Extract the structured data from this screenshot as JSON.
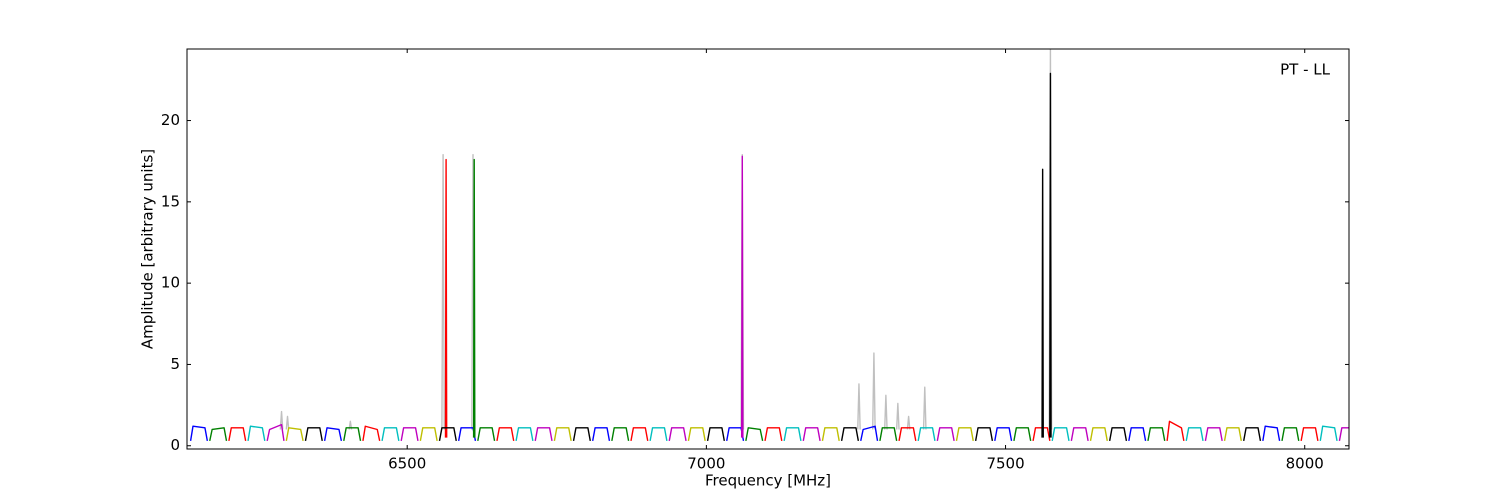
{
  "chart_data": {
    "type": "line",
    "xlabel": "Frequency [MHz]",
    "ylabel": "Amplitude [arbitrary units]",
    "annotation": "PT - LL",
    "xlim": [
      6132,
      8074
    ],
    "ylim": [
      -0.2,
      24.4
    ],
    "xticks": [
      6500,
      7000,
      7500,
      8000
    ],
    "yticks": [
      0,
      5,
      10,
      15,
      20
    ],
    "grid": false,
    "series": [
      {
        "color": "#c0c0c0",
        "x": [
          6288,
          6290,
          6292,
          null,
          6298,
          6300,
          6302,
          null,
          6403,
          6405,
          6407,
          null,
          6558,
          6560,
          6562,
          null,
          6608,
          6610,
          6612,
          null,
          7058,
          7060,
          7062,
          null,
          7253,
          7255,
          7257,
          null,
          7278,
          7280,
          7282,
          null,
          7298,
          7300,
          7302,
          null,
          7318,
          7320,
          7322,
          null,
          7336,
          7338,
          7340,
          null,
          7363,
          7365,
          7367,
          null,
          7573,
          7575,
          7577
        ],
        "values": [
          1.0,
          2.1,
          1.0,
          null,
          1.0,
          1.8,
          1.0,
          null,
          1.0,
          1.5,
          1.0,
          null,
          1.0,
          17.9,
          1.0,
          null,
          1.0,
          17.9,
          1.0,
          null,
          1.0,
          17.9,
          1.0,
          null,
          1.0,
          3.8,
          1.0,
          null,
          1.0,
          5.7,
          1.0,
          null,
          1.0,
          3.1,
          1.0,
          null,
          1.0,
          2.6,
          1.0,
          null,
          1.0,
          1.8,
          1.0,
          null,
          1.0,
          3.6,
          1.0,
          null,
          1.0,
          24.4,
          1.0
        ]
      },
      {
        "color": "#0000ff",
        "x": [
          6138,
          6142,
          6162,
          6166,
          null,
          6362,
          6366,
          6386,
          6390,
          null,
          6586,
          6590,
          6610,
          6614,
          null,
          6810,
          6814,
          6834,
          6838,
          null,
          7034,
          7038,
          7058,
          7062,
          null,
          7258,
          7262,
          7282,
          7286,
          null,
          7482,
          7486,
          7506,
          7510,
          null,
          7706,
          7710,
          7730,
          7734,
          null,
          7930,
          7934,
          7954,
          7958
        ],
        "values": [
          0.3,
          1.2,
          1.1,
          0.3,
          null,
          0.3,
          1.1,
          1.0,
          0.3,
          null,
          0.3,
          1.1,
          1.1,
          0.3,
          null,
          0.3,
          1.1,
          1.1,
          0.3,
          null,
          0.3,
          1.1,
          1.1,
          0.3,
          null,
          0.3,
          1.0,
          1.2,
          0.3,
          null,
          0.3,
          1.1,
          1.1,
          0.3,
          null,
          0.3,
          1.1,
          1.1,
          0.3,
          null,
          0.3,
          1.2,
          1.1,
          0.3
        ]
      },
      {
        "color": "#008000",
        "x": [
          6170,
          6174,
          6194,
          6198,
          null,
          6394,
          6398,
          6418,
          6422,
          null,
          6611,
          6612,
          6613,
          null,
          6618,
          6622,
          6642,
          6646,
          null,
          6842,
          6846,
          6866,
          6870,
          null,
          7066,
          7070,
          7090,
          7094,
          null,
          7290,
          7294,
          7314,
          7318,
          null,
          7514,
          7518,
          7538,
          7542,
          null,
          7738,
          7742,
          7762,
          7766,
          null,
          7962,
          7966,
          7986,
          7990
        ],
        "values": [
          0.3,
          1.0,
          1.1,
          0.3,
          null,
          0.3,
          1.1,
          1.1,
          0.3,
          null,
          0.5,
          17.6,
          0.5,
          null,
          0.3,
          1.1,
          1.1,
          0.3,
          null,
          0.3,
          1.1,
          1.1,
          0.3,
          null,
          0.3,
          1.1,
          1.0,
          0.3,
          null,
          0.3,
          1.1,
          1.1,
          0.3,
          null,
          0.3,
          1.1,
          1.1,
          0.3,
          null,
          0.3,
          1.1,
          1.1,
          0.3,
          null,
          0.3,
          1.1,
          1.1,
          0.3
        ]
      },
      {
        "color": "#ff0000",
        "x": [
          6202,
          6206,
          6226,
          6230,
          null,
          6426,
          6430,
          6450,
          6454,
          null,
          6564,
          6565,
          6566,
          null,
          6650,
          6654,
          6674,
          6678,
          null,
          6874,
          6878,
          6898,
          6902,
          null,
          7098,
          7102,
          7122,
          7126,
          null,
          7322,
          7326,
          7346,
          7350,
          null,
          7546,
          7550,
          7570,
          7574,
          null,
          7770,
          7774,
          7794,
          7798,
          null,
          7994,
          7998,
          8018,
          8022
        ],
        "values": [
          0.3,
          1.1,
          1.1,
          0.3,
          null,
          0.3,
          1.2,
          1.0,
          0.3,
          null,
          0.5,
          17.6,
          0.5,
          null,
          0.3,
          1.1,
          1.1,
          0.3,
          null,
          0.3,
          1.1,
          1.1,
          0.3,
          null,
          0.3,
          1.1,
          1.1,
          0.3,
          null,
          0.3,
          1.1,
          1.1,
          0.3,
          null,
          0.3,
          1.1,
          1.1,
          0.3,
          null,
          0.3,
          1.5,
          1.1,
          0.3,
          null,
          0.3,
          1.1,
          1.1,
          0.3
        ]
      },
      {
        "color": "#00bfbf",
        "x": [
          6234,
          6238,
          6258,
          6262,
          null,
          6458,
          6462,
          6482,
          6486,
          null,
          6682,
          6686,
          6706,
          6710,
          null,
          6906,
          6910,
          6930,
          6934,
          null,
          7130,
          7134,
          7154,
          7158,
          null,
          7354,
          7358,
          7378,
          7382,
          null,
          7578,
          7582,
          7602,
          7606,
          null,
          7802,
          7806,
          7826,
          7830,
          null,
          8026,
          8030,
          8050,
          8054
        ],
        "values": [
          0.3,
          1.2,
          1.1,
          0.3,
          null,
          0.3,
          1.1,
          1.1,
          0.3,
          null,
          0.3,
          1.1,
          1.1,
          0.3,
          null,
          0.3,
          1.1,
          1.1,
          0.3,
          null,
          0.3,
          1.1,
          1.1,
          0.3,
          null,
          0.3,
          1.1,
          1.1,
          0.3,
          null,
          0.3,
          1.1,
          1.1,
          0.3,
          null,
          0.3,
          1.1,
          1.1,
          0.3,
          null,
          0.3,
          1.2,
          1.1,
          0.3
        ]
      },
      {
        "color": "#bf00bf",
        "x": [
          6266,
          6270,
          6290,
          6294,
          null,
          6490,
          6494,
          6514,
          6518,
          null,
          6714,
          6718,
          6738,
          6742,
          null,
          6938,
          6942,
          6962,
          6966,
          null,
          7059,
          7060,
          7061,
          null,
          7162,
          7166,
          7186,
          7190,
          null,
          7386,
          7390,
          7410,
          7414,
          null,
          7610,
          7614,
          7634,
          7638,
          null,
          7834,
          7838,
          7858,
          7862,
          null,
          8058,
          8062,
          8082,
          8086
        ],
        "values": [
          0.3,
          1.0,
          1.3,
          0.3,
          null,
          0.3,
          1.1,
          1.1,
          0.3,
          null,
          0.3,
          1.1,
          1.1,
          0.3,
          null,
          0.3,
          1.1,
          1.1,
          0.3,
          null,
          0.5,
          17.8,
          0.5,
          null,
          0.3,
          1.1,
          1.1,
          0.3,
          null,
          0.3,
          1.1,
          1.1,
          0.3,
          null,
          0.3,
          1.1,
          1.1,
          0.3,
          null,
          0.3,
          1.1,
          1.1,
          0.3,
          null,
          0.3,
          1.1,
          1.1,
          0.3
        ]
      },
      {
        "color": "#bfbf00",
        "x": [
          6298,
          6302,
          6322,
          6326,
          null,
          6522,
          6526,
          6546,
          6550,
          null,
          6746,
          6750,
          6770,
          6774,
          null,
          6970,
          6974,
          6994,
          6998,
          null,
          7194,
          7198,
          7218,
          7222,
          null,
          7418,
          7422,
          7442,
          7446,
          null,
          7642,
          7646,
          7666,
          7670,
          null,
          7866,
          7870,
          7890,
          7894
        ],
        "values": [
          0.3,
          1.1,
          1.0,
          0.3,
          null,
          0.3,
          1.1,
          1.1,
          0.3,
          null,
          0.3,
          1.1,
          1.1,
          0.3,
          null,
          0.3,
          1.1,
          1.1,
          0.3,
          null,
          0.3,
          1.1,
          1.1,
          0.3,
          null,
          0.3,
          1.1,
          1.1,
          0.3,
          null,
          0.3,
          1.1,
          1.1,
          0.3,
          null,
          0.3,
          1.1,
          1.1,
          0.3
        ]
      },
      {
        "color": "#000000",
        "x": [
          6330,
          6334,
          6354,
          6358,
          null,
          6554,
          6558,
          6578,
          6582,
          null,
          6778,
          6782,
          6802,
          6806,
          null,
          7002,
          7006,
          7026,
          7030,
          null,
          7226,
          7230,
          7250,
          7254,
          null,
          7450,
          7454,
          7474,
          7478,
          null,
          7561,
          7562,
          7563,
          null,
          7574,
          7575,
          7576,
          null,
          7674,
          7678,
          7698,
          7702,
          null,
          7898,
          7902,
          7922,
          7926
        ],
        "values": [
          0.3,
          1.1,
          1.1,
          0.3,
          null,
          0.3,
          1.1,
          1.1,
          0.3,
          null,
          0.3,
          1.1,
          1.1,
          0.3,
          null,
          0.3,
          1.1,
          1.1,
          0.3,
          null,
          0.3,
          1.1,
          1.1,
          0.3,
          null,
          0.3,
          1.1,
          1.1,
          0.3,
          null,
          0.5,
          17.0,
          0.5,
          null,
          0.5,
          22.9,
          0.5,
          null,
          0.3,
          1.1,
          1.1,
          0.3,
          null,
          0.3,
          1.1,
          1.1,
          0.3
        ]
      }
    ]
  }
}
